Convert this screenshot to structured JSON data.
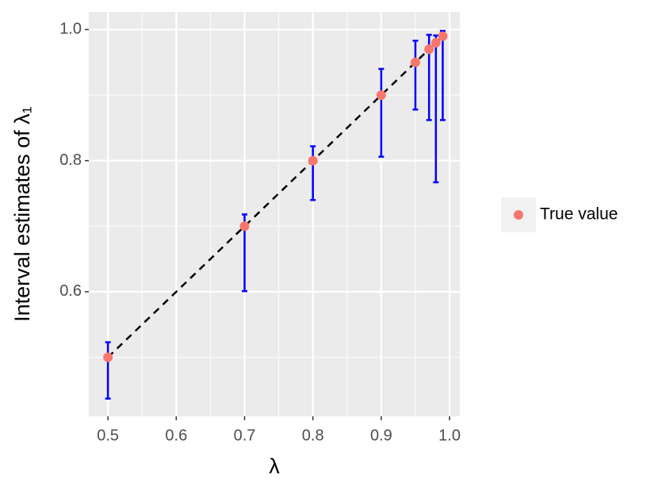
{
  "chart_data": {
    "type": "scatter",
    "x_label": "λ",
    "y_label": "Interval estimates of λ₁",
    "x": [
      0.5,
      0.7,
      0.8,
      0.9,
      0.95,
      0.97,
      0.98,
      0.99
    ],
    "series": [
      {
        "name": "True value",
        "color": "#F8766D",
        "values": [
          0.5,
          0.7,
          0.8,
          0.9,
          0.95,
          0.97,
          0.98,
          0.99
        ],
        "lower": [
          0.437,
          0.601,
          0.74,
          0.806,
          0.878,
          0.862,
          0.767,
          0.862
        ],
        "upper": [
          0.523,
          0.718,
          0.822,
          0.94,
          0.983,
          0.992,
          0.991,
          0.998
        ],
        "errorbar_color": "#0000FF",
        "line_color": "#000000"
      }
    ],
    "xlim": [
      0.472,
      1.015
    ],
    "ylim": [
      0.41,
      1.027
    ],
    "xticks": [
      0.5,
      0.6,
      0.7,
      0.8,
      0.9,
      {
        "value": 1,
        "label": "1.0"
      }
    ],
    "yticks": [
      0.6,
      0.8,
      {
        "value": 1,
        "label": "1.0"
      }
    ],
    "grid": true,
    "legend": "right"
  }
}
